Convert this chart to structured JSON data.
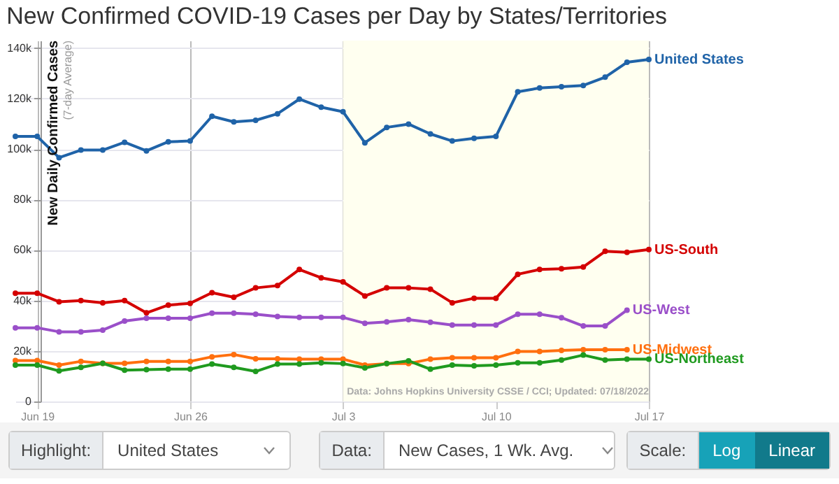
{
  "chart_data": {
    "type": "line",
    "title": "New Confirmed COVID-19 Cases per Day by States/Territories",
    "ylabel": "New Daily Confirmed Cases",
    "annotations": [
      "Data: Johns Hopkins University CSSE / CCI; Updated: 07/18/2022",
      "(7-day Average)",
      "Highlight:",
      "United States",
      "Data:",
      "New Cases, 1 Wk. Avg.",
      "Scale:",
      "Log",
      "Linear"
    ],
    "x": [
      "2022-06-18",
      "2022-06-19",
      "2022-06-20",
      "2022-06-21",
      "2022-06-22",
      "2022-06-23",
      "2022-06-24",
      "2022-06-25",
      "2022-06-26",
      "2022-06-27",
      "2022-06-28",
      "2022-06-29",
      "2022-06-30",
      "2022-07-01",
      "2022-07-02",
      "2022-07-03",
      "2022-07-04",
      "2022-07-05",
      "2022-07-06",
      "2022-07-07",
      "2022-07-08",
      "2022-07-09",
      "2022-07-10",
      "2022-07-11",
      "2022-07-12",
      "2022-07-13",
      "2022-07-14",
      "2022-07-15",
      "2022-07-16",
      "2022-07-17"
    ],
    "series": [
      {
        "name": "United States",
        "color": "#1f63a8",
        "values": [
          105000,
          105000,
          96600,
          99600,
          99600,
          102700,
          99300,
          102900,
          103200,
          113000,
          110800,
          111400,
          114000,
          119800,
          116600,
          114800,
          102500,
          108600,
          109900,
          106000,
          103200,
          104300,
          105000,
          122700,
          124200,
          124700,
          125200,
          128500,
          134400,
          135500
        ]
      },
      {
        "name": "US-South",
        "color": "#d40000",
        "values": [
          42900,
          42900,
          39500,
          40000,
          39100,
          40000,
          35100,
          38200,
          38900,
          43100,
          41300,
          45000,
          45900,
          52300,
          49000,
          47400,
          41800,
          45000,
          45000,
          44500,
          39100,
          40900,
          40900,
          50400,
          52300,
          52600,
          53300,
          59500,
          59100,
          60200
        ]
      },
      {
        "name": "US-West",
        "color": "#9a4fc9",
        "values": [
          29200,
          29200,
          27600,
          27600,
          28300,
          31900,
          33000,
          33000,
          33000,
          35000,
          35000,
          34600,
          33700,
          33300,
          33300,
          33300,
          31000,
          31500,
          32400,
          31400,
          30300,
          30300,
          30300,
          34600,
          34600,
          33200,
          29900,
          29900,
          36200,
          null
        ]
      },
      {
        "name": "US-Midwest",
        "color": "#ff6f0e",
        "values": [
          16200,
          16200,
          14400,
          15900,
          15100,
          15100,
          15900,
          15900,
          15900,
          17700,
          18600,
          16900,
          16900,
          16800,
          16800,
          16800,
          14400,
          15000,
          15000,
          16800,
          17300,
          17300,
          17300,
          19800,
          19800,
          20200,
          20500,
          20500,
          20500,
          null
        ]
      },
      {
        "name": "US-Northeast",
        "color": "#1f9a1f",
        "values": [
          14400,
          14400,
          12100,
          13500,
          15100,
          12400,
          12600,
          12800,
          12800,
          14800,
          13500,
          11900,
          14800,
          14800,
          15300,
          15000,
          13300,
          15000,
          16100,
          12800,
          14400,
          14100,
          14400,
          15300,
          15300,
          16400,
          18400,
          16400,
          16800,
          16800
        ]
      }
    ],
    "xlim": [
      "2022-06-18",
      "2022-07-17"
    ],
    "xticks": [
      {
        "value": "2022-06-19",
        "label": "Jun 19"
      },
      {
        "value": "2022-06-26",
        "label": "Jun 26"
      },
      {
        "value": "2022-07-03",
        "label": "Jul 3"
      },
      {
        "value": "2022-07-10",
        "label": "Jul 10"
      },
      {
        "value": "2022-07-17",
        "label": "Jul 17"
      }
    ],
    "ylim": [
      0,
      143000
    ],
    "yticks": [
      {
        "value": 0,
        "label": "0"
      },
      {
        "value": 20000,
        "label": "20k"
      },
      {
        "value": 40000,
        "label": "40k"
      },
      {
        "value": 60000,
        "label": "60k"
      },
      {
        "value": 80000,
        "label": "80k"
      },
      {
        "value": 100000,
        "label": "100k"
      },
      {
        "value": 120000,
        "label": "120k"
      },
      {
        "value": 140000,
        "label": "140k"
      }
    ],
    "bands": [
      {
        "axis": "x",
        "from": "2022-07-03",
        "to": "2022-07-17",
        "color": "#fffff0"
      }
    ],
    "grid": true,
    "marker": "circle",
    "line_style": "solid"
  }
}
